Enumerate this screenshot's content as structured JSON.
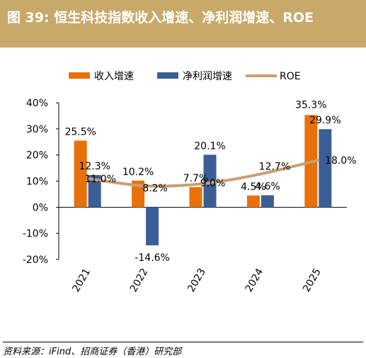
{
  "header": {
    "title": "图 39: 恒生科技指数收入增速、净利润增速、ROE"
  },
  "colors": {
    "header_bg": "#c8a96a",
    "revenue": "#e8710a",
    "profit": "#3c5e96",
    "roe": "#c8a072"
  },
  "chart_data": {
    "type": "bar",
    "categories": [
      "2021",
      "2022",
      "2023",
      "2024",
      "2025"
    ],
    "series": [
      {
        "name": "收入增速",
        "type": "bar",
        "values": [
          25.5,
          10.2,
          7.7,
          4.5,
          35.3
        ],
        "labels": [
          "25.5%",
          "10.2%",
          "7.7%",
          "4.5%",
          "35.3%"
        ]
      },
      {
        "name": "净利润增速",
        "type": "bar",
        "values": [
          12.3,
          -14.6,
          20.1,
          4.6,
          29.9
        ],
        "labels": [
          "12.3%",
          "-14.6%",
          "20.1%",
          "4.6%",
          "29.9%"
        ]
      },
      {
        "name": "ROE",
        "type": "line",
        "values": [
          11.0,
          8.2,
          9.0,
          12.7,
          18.0
        ],
        "labels": [
          "11.0%",
          "8.2%",
          "9.0%",
          "12.7%",
          "18.0%"
        ]
      }
    ],
    "ylim": [
      -20,
      40
    ],
    "yticks": [
      "-20%",
      "-10%",
      "0%",
      "10%",
      "20%",
      "30%",
      "40%"
    ],
    "legend_position": "top",
    "grid": false
  },
  "source": "资料来源：iFind、招商证券（香港）研究部"
}
